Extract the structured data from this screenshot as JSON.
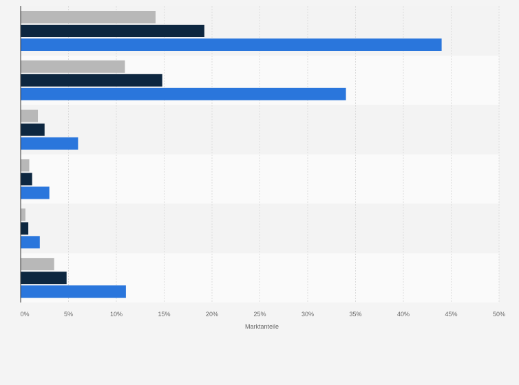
{
  "chart_data": {
    "type": "bar",
    "orientation": "horizontal",
    "categories": [
      "",
      "",
      "",
      "",
      "",
      ""
    ],
    "series": [
      {
        "values": [
          14.1,
          10.9,
          1.8,
          0.9,
          0.5,
          3.5
        ],
        "color": "#b8b8b8"
      },
      {
        "values": [
          19.2,
          14.8,
          2.5,
          1.2,
          0.8,
          4.8
        ],
        "color": "#0d2740"
      },
      {
        "values": [
          44.0,
          34.0,
          6.0,
          3.0,
          2.0,
          11.0
        ],
        "color": "#2a76dc"
      }
    ],
    "xlabel": "Marktanteile",
    "ylabel": "",
    "xlim": [
      0,
      50
    ],
    "ticks": [
      0,
      5,
      10,
      15,
      20,
      25,
      30,
      35,
      40,
      45,
      50
    ],
    "tick_labels": [
      "0%",
      "5%",
      "10%",
      "15%",
      "20%",
      "25%",
      "30%",
      "35%",
      "40%",
      "45%",
      "50%"
    ],
    "grid": true,
    "legend": "none",
    "band_colors": [
      "#f3f3f3",
      "#fafafa"
    ]
  }
}
